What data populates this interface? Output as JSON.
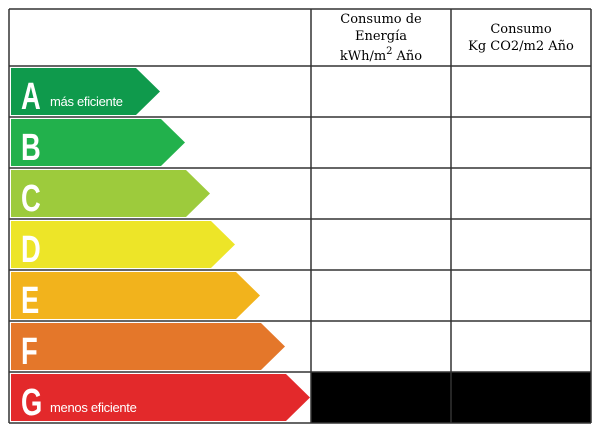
{
  "header": {
    "energy": {
      "line1": "Consumo de",
      "line2": "Energía",
      "unit": "kWh/m",
      "unit_sup": "2",
      "year": "Año"
    },
    "co2": {
      "line1": "Consumo",
      "line2": "Kg CO2/m2 Año"
    }
  },
  "ratings": [
    {
      "letter": "A",
      "note": "más eficiente",
      "color": "#0f9a4c"
    },
    {
      "letter": "B",
      "color": "#22b14c"
    },
    {
      "letter": "C",
      "color": "#9dcb3c"
    },
    {
      "letter": "D",
      "color": "#ede528"
    },
    {
      "letter": "E",
      "color": "#f2b31c"
    },
    {
      "letter": "F",
      "color": "#e4772a"
    },
    {
      "letter": "G",
      "note": "menos eficiente",
      "color": "#e3292b"
    }
  ]
}
